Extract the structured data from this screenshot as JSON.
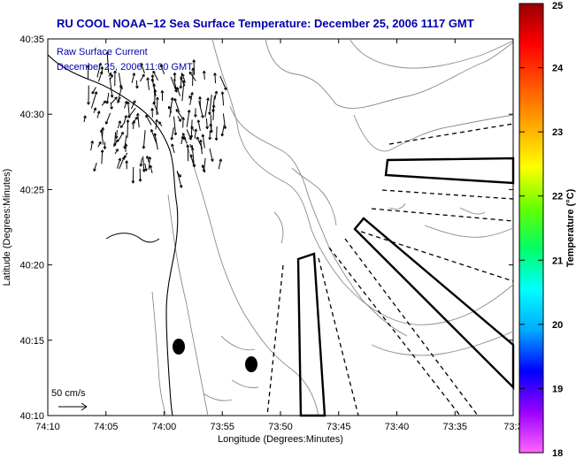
{
  "title": "RU COOL  NOAA−12  Sea Surface Temperature:  December 25, 2006 1117 GMT",
  "legend": {
    "line1": "Raw Surface Current",
    "line2": "December 25, 2006 11:00 GMT"
  },
  "scale_label": "50 cm/s",
  "axes": {
    "xlabel": "Longitude (Degrees:Minutes)",
    "ylabel": "Latitude (Degrees:Minutes)",
    "xticks": [
      "74:10",
      "74:05",
      "74:00",
      "73:55",
      "73:50",
      "73:45",
      "73:40",
      "73:35",
      "73:3"
    ],
    "yticks": [
      "40:35",
      "40:30",
      "40:25",
      "40:20",
      "40:15",
      "40:10"
    ]
  },
  "colorbar": {
    "label": "Temperature (°C)",
    "ticks": [
      "25",
      "24",
      "23",
      "22",
      "21",
      "20",
      "19",
      "18"
    ],
    "range": [
      18,
      25
    ],
    "colors": [
      "#ff66ff",
      "#9900ff",
      "#0000ff",
      "#00aaff",
      "#00ffff",
      "#00ff66",
      "#66ff00",
      "#ffff00",
      "#ffaa00",
      "#ff5500",
      "#ff0000",
      "#990000"
    ]
  },
  "chart_data": {
    "type": "map",
    "xlim": [
      "74:10",
      "73:30"
    ],
    "ylim": [
      "40:10",
      "40:35"
    ],
    "markers": [
      {
        "shape": "filled-ellipse",
        "lon": "74:01.3",
        "lat": "40:14.5"
      },
      {
        "shape": "filled-ellipse",
        "lon": "73:57.5",
        "lat": "40:13.4"
      }
    ]
  }
}
